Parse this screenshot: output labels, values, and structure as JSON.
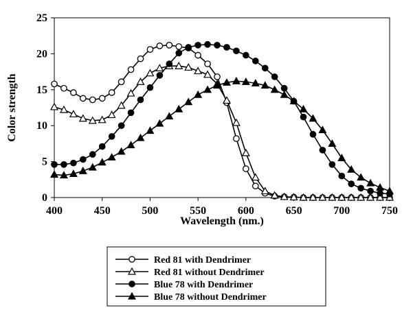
{
  "chart_data": {
    "type": "line",
    "xlabel": "Wavelength (nm.)",
    "ylabel": "Color strength",
    "xlim": [
      400,
      750
    ],
    "ylim": [
      0,
      25
    ],
    "x_ticks": [
      400,
      450,
      500,
      550,
      600,
      650,
      700,
      750
    ],
    "y_ticks": [
      0,
      5,
      10,
      15,
      20,
      25
    ],
    "grid": false,
    "legend_position": "bottom",
    "x": [
      400,
      410,
      420,
      430,
      440,
      450,
      460,
      470,
      480,
      490,
      500,
      510,
      520,
      530,
      540,
      550,
      560,
      570,
      580,
      590,
      600,
      610,
      620,
      630,
      640,
      650,
      660,
      670,
      680,
      690,
      700,
      710,
      720,
      730,
      740,
      750
    ],
    "series": [
      {
        "name": "Red 81 with Dendrimer",
        "marker": "open-circle",
        "values": [
          15.8,
          15.2,
          14.6,
          13.8,
          13.6,
          13.8,
          14.6,
          16.1,
          17.8,
          19.3,
          20.6,
          21.1,
          21.2,
          21.0,
          20.8,
          19.8,
          18.6,
          16.8,
          13.2,
          8.2,
          4.0,
          1.6,
          0.6,
          0.2,
          0.1,
          0.05,
          0.0,
          0.0,
          0.0,
          0.0,
          0.0,
          0.0,
          0.0,
          0.0,
          0.0,
          0.0
        ]
      },
      {
        "name": "Red 81 without Dendrimer",
        "marker": "open-triangle",
        "values": [
          12.6,
          12.2,
          11.6,
          11.0,
          10.7,
          10.8,
          11.5,
          12.8,
          14.5,
          16.1,
          17.3,
          18.0,
          18.3,
          18.3,
          18.1,
          17.6,
          17.1,
          15.8,
          13.5,
          10.4,
          6.2,
          2.8,
          0.9,
          0.3,
          0.1,
          0.05,
          0.0,
          0.0,
          0.0,
          0.0,
          0.0,
          0.0,
          0.0,
          0.0,
          0.0,
          0.0
        ]
      },
      {
        "name": "Blue 78 with Dendrimer",
        "marker": "filled-circle",
        "values": [
          4.6,
          4.6,
          4.8,
          5.3,
          6.0,
          7.1,
          8.5,
          10.0,
          11.8,
          13.6,
          15.3,
          17.0,
          18.6,
          20.1,
          20.9,
          21.2,
          21.3,
          21.2,
          20.9,
          20.4,
          19.8,
          19.0,
          18.0,
          16.8,
          15.2,
          13.4,
          11.2,
          8.8,
          6.6,
          4.6,
          3.0,
          1.9,
          1.3,
          0.9,
          0.6,
          0.5
        ]
      },
      {
        "name": "Blue 78 without Dendrimer",
        "marker": "filled-triangle",
        "values": [
          3.2,
          3.1,
          3.3,
          3.7,
          4.2,
          4.9,
          5.6,
          6.4,
          7.3,
          8.3,
          9.3,
          10.3,
          11.3,
          12.3,
          13.3,
          14.3,
          15.0,
          15.6,
          16.0,
          16.2,
          16.1,
          15.9,
          15.6,
          15.0,
          14.3,
          13.4,
          12.3,
          11.0,
          9.4,
          7.5,
          5.5,
          3.9,
          2.8,
          2.0,
          1.4,
          0.9
        ]
      }
    ]
  }
}
